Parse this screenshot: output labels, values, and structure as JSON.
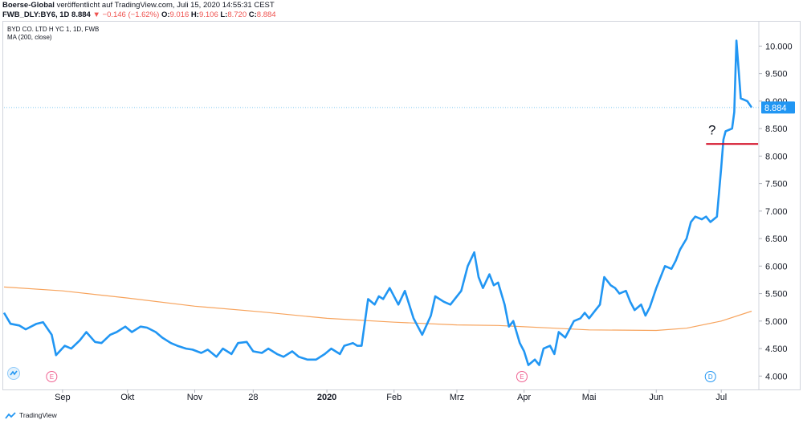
{
  "header": {
    "author": "Boerse-Global",
    "published": "veröffentlicht auf TradingView.com, Juli 15, 2020 14:55:31 CEST",
    "symbol": "FWB_DLY:BY6, 1D",
    "last": "8.884",
    "change_arrow": "▼",
    "change": "−0.146 (−1.62%)",
    "o_label": "O:",
    "o_value": "9.016",
    "h_label": "H:",
    "h_value": "9.106",
    "l_label": "L:",
    "l_value": "8.720",
    "c_label": "C:",
    "c_value": "8.884"
  },
  "legend": {
    "title": "BYD CO. LTD H YC 1, 1D, FWB",
    "indicator": "MA (200, close)"
  },
  "colors": {
    "price": "#2196f3",
    "ma": "#f7a35c",
    "level": "#d0021b",
    "last_line": "#7ec8f0",
    "event_e": "#f06292",
    "event_d": "#2196f3"
  },
  "footer": {
    "brand": "TradingView"
  },
  "chart_data": {
    "type": "line",
    "title": "BYD CO. LTD H YC 1, 1D, FWB",
    "ylim": [
      3.8,
      10.4
    ],
    "y_ticks": [
      "10.000",
      "9.500",
      "9.000",
      "8.500",
      "8.000",
      "7.500",
      "7.000",
      "6.500",
      "6.000",
      "5.500",
      "5.000",
      "4.500",
      "4.000"
    ],
    "x_ticks": [
      "Sep",
      "Okt",
      "Nov",
      "28",
      "2020",
      "Feb",
      "Mrz",
      "Apr",
      "Mai",
      "Jun",
      "Jul"
    ],
    "x_tick_dates": [
      "2019-09-01",
      "2019-10-01",
      "2019-11-01",
      "2019-11-28",
      "2020-01-01",
      "2020-02-01",
      "2020-03-01",
      "2020-04-01",
      "2020-05-01",
      "2020-06-01",
      "2020-07-01"
    ],
    "last_price_label": "8.884",
    "annotation_text": "?",
    "annotation_level": 8.22,
    "series": [
      {
        "name": "BYD CO. LTD H YC 1, 1D, FWB",
        "points": [
          [
            "2019-08-05",
            5.15
          ],
          [
            "2019-08-08",
            4.95
          ],
          [
            "2019-08-12",
            4.92
          ],
          [
            "2019-08-15",
            4.85
          ],
          [
            "2019-08-20",
            4.95
          ],
          [
            "2019-08-23",
            4.98
          ],
          [
            "2019-08-27",
            4.75
          ],
          [
            "2019-08-29",
            4.38
          ],
          [
            "2019-09-02",
            4.55
          ],
          [
            "2019-09-05",
            4.5
          ],
          [
            "2019-09-09",
            4.65
          ],
          [
            "2019-09-12",
            4.8
          ],
          [
            "2019-09-16",
            4.62
          ],
          [
            "2019-09-19",
            4.6
          ],
          [
            "2019-09-23",
            4.75
          ],
          [
            "2019-09-26",
            4.8
          ],
          [
            "2019-09-30",
            4.9
          ],
          [
            "2019-10-03",
            4.8
          ],
          [
            "2019-10-07",
            4.9
          ],
          [
            "2019-10-10",
            4.88
          ],
          [
            "2019-10-14",
            4.8
          ],
          [
            "2019-10-17",
            4.7
          ],
          [
            "2019-10-21",
            4.6
          ],
          [
            "2019-10-24",
            4.55
          ],
          [
            "2019-10-28",
            4.5
          ],
          [
            "2019-10-31",
            4.48
          ],
          [
            "2019-11-04",
            4.42
          ],
          [
            "2019-11-07",
            4.48
          ],
          [
            "2019-11-11",
            4.35
          ],
          [
            "2019-11-14",
            4.5
          ],
          [
            "2019-11-18",
            4.4
          ],
          [
            "2019-11-21",
            4.6
          ],
          [
            "2019-11-25",
            4.62
          ],
          [
            "2019-11-28",
            4.45
          ],
          [
            "2019-12-02",
            4.42
          ],
          [
            "2019-12-05",
            4.5
          ],
          [
            "2019-12-09",
            4.4
          ],
          [
            "2019-12-12",
            4.35
          ],
          [
            "2019-12-16",
            4.45
          ],
          [
            "2019-12-19",
            4.35
          ],
          [
            "2019-12-23",
            4.3
          ],
          [
            "2019-12-27",
            4.3
          ],
          [
            "2019-12-31",
            4.4
          ],
          [
            "2020-01-03",
            4.5
          ],
          [
            "2020-01-07",
            4.4
          ],
          [
            "2020-01-09",
            4.55
          ],
          [
            "2020-01-13",
            4.6
          ],
          [
            "2020-01-15",
            4.55
          ],
          [
            "2020-01-17",
            4.55
          ],
          [
            "2020-01-20",
            5.4
          ],
          [
            "2020-01-23",
            5.3
          ],
          [
            "2020-01-25",
            5.45
          ],
          [
            "2020-01-27",
            5.4
          ],
          [
            "2020-01-30",
            5.6
          ],
          [
            "2020-02-03",
            5.3
          ],
          [
            "2020-02-06",
            5.55
          ],
          [
            "2020-02-10",
            5.05
          ],
          [
            "2020-02-12",
            4.9
          ],
          [
            "2020-02-14",
            4.75
          ],
          [
            "2020-02-18",
            5.1
          ],
          [
            "2020-02-20",
            5.45
          ],
          [
            "2020-02-24",
            5.35
          ],
          [
            "2020-02-27",
            5.3
          ],
          [
            "2020-03-03",
            5.55
          ],
          [
            "2020-03-06",
            6.0
          ],
          [
            "2020-03-09",
            6.25
          ],
          [
            "2020-03-11",
            5.8
          ],
          [
            "2020-03-13",
            5.6
          ],
          [
            "2020-03-16",
            5.85
          ],
          [
            "2020-03-18",
            5.65
          ],
          [
            "2020-03-20",
            5.7
          ],
          [
            "2020-03-23",
            5.3
          ],
          [
            "2020-03-25",
            4.9
          ],
          [
            "2020-03-27",
            5.0
          ],
          [
            "2020-03-30",
            4.6
          ],
          [
            "2020-04-01",
            4.45
          ],
          [
            "2020-04-03",
            4.2
          ],
          [
            "2020-04-06",
            4.3
          ],
          [
            "2020-04-08",
            4.2
          ],
          [
            "2020-04-10",
            4.5
          ],
          [
            "2020-04-13",
            4.55
          ],
          [
            "2020-04-15",
            4.4
          ],
          [
            "2020-04-17",
            4.8
          ],
          [
            "2020-04-20",
            4.7
          ],
          [
            "2020-04-22",
            4.85
          ],
          [
            "2020-04-24",
            5.0
          ],
          [
            "2020-04-27",
            5.05
          ],
          [
            "2020-04-29",
            5.15
          ],
          [
            "2020-05-01",
            5.05
          ],
          [
            "2020-05-04",
            5.2
          ],
          [
            "2020-05-06",
            5.3
          ],
          [
            "2020-05-08",
            5.8
          ],
          [
            "2020-05-11",
            5.65
          ],
          [
            "2020-05-13",
            5.6
          ],
          [
            "2020-05-15",
            5.5
          ],
          [
            "2020-05-18",
            5.55
          ],
          [
            "2020-05-20",
            5.35
          ],
          [
            "2020-05-22",
            5.2
          ],
          [
            "2020-05-25",
            5.3
          ],
          [
            "2020-05-27",
            5.1
          ],
          [
            "2020-05-29",
            5.25
          ],
          [
            "2020-06-01",
            5.6
          ],
          [
            "2020-06-03",
            5.8
          ],
          [
            "2020-06-05",
            6.0
          ],
          [
            "2020-06-08",
            5.95
          ],
          [
            "2020-06-10",
            6.1
          ],
          [
            "2020-06-12",
            6.3
          ],
          [
            "2020-06-15",
            6.5
          ],
          [
            "2020-06-17",
            6.8
          ],
          [
            "2020-06-19",
            6.9
          ],
          [
            "2020-06-22",
            6.85
          ],
          [
            "2020-06-24",
            6.9
          ],
          [
            "2020-06-26",
            6.8
          ],
          [
            "2020-06-29",
            6.9
          ],
          [
            "2020-07-01",
            7.8
          ],
          [
            "2020-07-02",
            8.3
          ],
          [
            "2020-07-03",
            8.45
          ],
          [
            "2020-07-06",
            8.5
          ],
          [
            "2020-07-07",
            8.8
          ],
          [
            "2020-07-08",
            10.1
          ],
          [
            "2020-07-10",
            9.05
          ],
          [
            "2020-07-13",
            9.0
          ],
          [
            "2020-07-15",
            8.884
          ]
        ]
      },
      {
        "name": "MA (200, close)",
        "points": [
          [
            "2019-08-05",
            5.62
          ],
          [
            "2019-09-01",
            5.55
          ],
          [
            "2019-10-01",
            5.42
          ],
          [
            "2019-11-01",
            5.27
          ],
          [
            "2019-12-01",
            5.17
          ],
          [
            "2020-01-01",
            5.05
          ],
          [
            "2020-02-01",
            4.98
          ],
          [
            "2020-03-01",
            4.93
          ],
          [
            "2020-03-20",
            4.92
          ],
          [
            "2020-04-15",
            4.87
          ],
          [
            "2020-05-01",
            4.84
          ],
          [
            "2020-06-01",
            4.83
          ],
          [
            "2020-06-15",
            4.87
          ],
          [
            "2020-07-01",
            5.0
          ],
          [
            "2020-07-15",
            5.18
          ]
        ]
      }
    ],
    "events": [
      {
        "label": "E",
        "date": "2019-08-27"
      },
      {
        "label": "E",
        "date": "2020-03-31"
      },
      {
        "label": "D",
        "date": "2020-06-26"
      }
    ]
  }
}
